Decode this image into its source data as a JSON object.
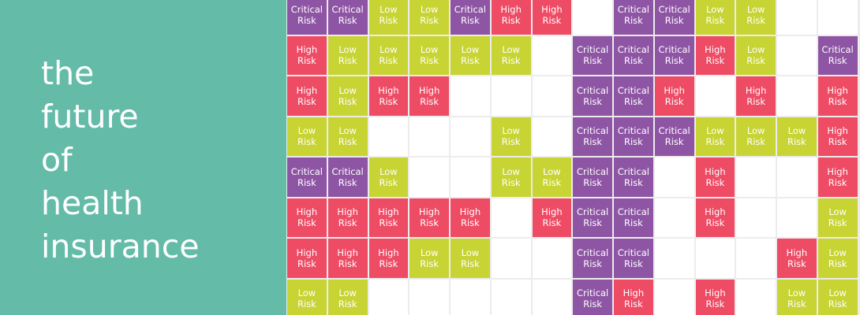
{
  "title_lines": [
    "the",
    "future",
    "of",
    "health",
    "insurance"
  ],
  "colors": {
    "Critical Risk": "#8e55a4",
    "High Risk": "#ee4b65",
    "Low Risk": "#c8d434"
  },
  "grid": [
    [
      "Critical Risk",
      "Critical Risk",
      "Low Risk",
      "Low Risk",
      "Critical Risk",
      "High Risk",
      "High Risk",
      null,
      "Critical Risk",
      "Critical Risk",
      "Low Risk",
      "Low Risk",
      null,
      null
    ],
    [
      "High Risk",
      "Low Risk",
      "Low Risk",
      "Low Risk",
      "Low Risk",
      "Low Risk",
      null,
      "Critical Risk",
      "Critical Risk",
      "Critical Risk",
      "High Risk",
      "Low Risk",
      null,
      "Critical Risk"
    ],
    [
      "High Risk",
      "Low Risk",
      "High Risk",
      "High Risk",
      null,
      null,
      null,
      "Critical Risk",
      "Critical Risk",
      "High Risk",
      null,
      "High Risk",
      null,
      "High Risk"
    ],
    [
      "Low Risk",
      "Low Risk",
      null,
      null,
      null,
      "Low Risk",
      null,
      "Critical Risk",
      "Critical Risk",
      "Critical Risk",
      "Low Risk",
      "Low Risk",
      "Low Risk",
      "High Risk"
    ],
    [
      "Critical Risk",
      "Critical Risk",
      "Low Risk",
      null,
      null,
      "Low Risk",
      "Low Risk",
      "Critical Risk",
      "Critical Risk",
      null,
      "High Risk",
      null,
      null,
      "High Risk"
    ],
    [
      "High Risk",
      "High Risk",
      "High Risk",
      "High Risk",
      "High Risk",
      null,
      "High Risk",
      "Critical Risk",
      "Critical Risk",
      null,
      "High Risk",
      null,
      null,
      "Low Risk"
    ],
    [
      "High Risk",
      "High Risk",
      "High Risk",
      "Low Risk",
      "Low Risk",
      null,
      null,
      "Critical Risk",
      "Critical Risk",
      null,
      null,
      null,
      "High Risk",
      "Low Risk"
    ],
    [
      "Low Risk",
      "Low Risk",
      null,
      null,
      null,
      null,
      null,
      "Critical Risk",
      "High Risk",
      null,
      "High Risk",
      null,
      "Low Risk",
      "Low Risk"
    ]
  ]
}
